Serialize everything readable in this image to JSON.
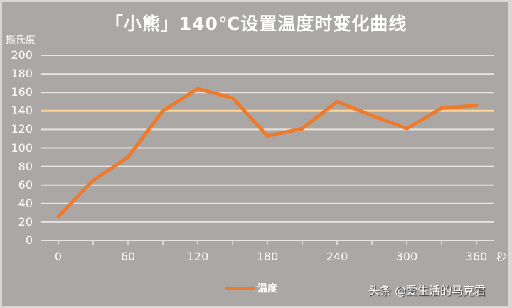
{
  "chart_data": {
    "type": "line",
    "title": "「小熊」140℃设置温度时变化曲线",
    "xlabel": "秒",
    "ylabel": "摄氏度",
    "x": [
      0,
      30,
      60,
      90,
      120,
      150,
      180,
      210,
      240,
      270,
      300,
      330,
      360
    ],
    "series": [
      {
        "name": "温度",
        "color": "#ee7b2c",
        "values": [
          26,
          65,
          90,
          140,
          164,
          154,
          113,
          121,
          150,
          135,
          121,
          143,
          146
        ]
      }
    ],
    "reference_line": {
      "value": 140,
      "color": "#ffd59a"
    },
    "x_tick_labels": [
      "0",
      "60",
      "120",
      "180",
      "240",
      "300",
      "360"
    ],
    "y_tick_labels": [
      "0",
      "20",
      "40",
      "60",
      "80",
      "100",
      "120",
      "140",
      "160",
      "180",
      "200"
    ],
    "ylim": [
      0,
      200
    ],
    "xlim": [
      0,
      360
    ],
    "grid": true,
    "legend_position": "bottom"
  },
  "ui": {
    "title": "「小熊」140℃设置温度时变化曲线",
    "ylabel": "摄氏度",
    "xunit": "秒",
    "legend_label": "温度",
    "watermark": "头条 @爱生活的马克君"
  }
}
